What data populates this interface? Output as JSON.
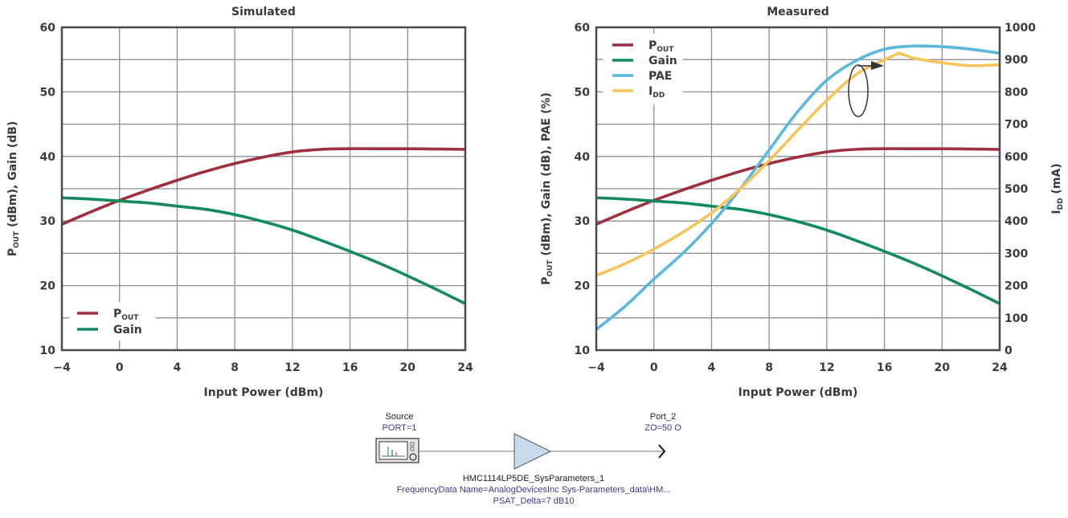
{
  "chart_data": [
    {
      "type": "line",
      "title": "Simulated",
      "xlabel": "Input Power (dBm)",
      "ylabel": "P_OUT (dBm), Gain (dB)",
      "xlim": [
        -4,
        24
      ],
      "ylim": [
        10,
        60
      ],
      "xticks": [
        "−4",
        "0",
        "4",
        "8",
        "12",
        "16",
        "20",
        "24"
      ],
      "yticks": [
        "10",
        "20",
        "30",
        "40",
        "50",
        "60"
      ],
      "grid": true,
      "legend_position": "bottom-left",
      "series": [
        {
          "name": "P_OUT",
          "label_main": "P",
          "label_sub": "OUT",
          "color": "#9e2f3f",
          "axis": "left",
          "x": [
            -4,
            -2,
            0,
            2,
            4,
            6,
            8,
            10,
            12,
            14,
            16,
            18,
            20,
            22,
            24
          ],
          "y": [
            29.5,
            31.4,
            33.2,
            34.8,
            36.3,
            37.7,
            38.9,
            39.9,
            40.7,
            41.1,
            41.2,
            41.2,
            41.2,
            41.15,
            41.1
          ]
        },
        {
          "name": "Gain",
          "label_main": "Gain",
          "label_sub": "",
          "color": "#138a5e",
          "axis": "left",
          "x": [
            -4,
            -2,
            0,
            2,
            4,
            6,
            8,
            10,
            12,
            14,
            16,
            18,
            20,
            22,
            24
          ],
          "y": [
            33.6,
            33.4,
            33.1,
            32.8,
            32.3,
            31.8,
            31.0,
            29.9,
            28.6,
            27.0,
            25.3,
            23.5,
            21.5,
            19.4,
            17.2
          ]
        }
      ]
    },
    {
      "type": "line",
      "title": "Measured",
      "xlabel": "Input Power (dBm)",
      "ylabel": "P_OUT (dBm), Gain (dB), PAE (%)",
      "ylabel_right": "I_DD (mA)",
      "xlim": [
        -4,
        24
      ],
      "ylim": [
        10,
        60
      ],
      "ylim_right": [
        0,
        1000
      ],
      "xticks": [
        "−4",
        "0",
        "4",
        "8",
        "12",
        "16",
        "20",
        "24"
      ],
      "yticks": [
        "10",
        "20",
        "30",
        "40",
        "50",
        "60"
      ],
      "yticks_right": [
        "0",
        "100",
        "200",
        "300",
        "400",
        "500",
        "600",
        "700",
        "800",
        "900",
        "1000"
      ],
      "grid": true,
      "legend_position": "top-left",
      "annotation": "ellipse around PAE/I_DD curves with arrow pointing right (I_DD uses right axis)",
      "series": [
        {
          "name": "P_OUT",
          "label_main": "P",
          "label_sub": "OUT",
          "color": "#9e2f3f",
          "axis": "left",
          "x": [
            -4,
            -2,
            0,
            2,
            4,
            6,
            8,
            10,
            12,
            14,
            16,
            18,
            20,
            22,
            24
          ],
          "y": [
            29.5,
            31.4,
            33.2,
            34.8,
            36.3,
            37.7,
            38.9,
            39.9,
            40.7,
            41.1,
            41.2,
            41.2,
            41.2,
            41.15,
            41.1
          ]
        },
        {
          "name": "Gain",
          "label_main": "Gain",
          "label_sub": "",
          "color": "#138a5e",
          "axis": "left",
          "x": [
            -4,
            -2,
            0,
            2,
            4,
            6,
            8,
            10,
            12,
            14,
            16,
            18,
            20,
            22,
            24
          ],
          "y": [
            33.6,
            33.4,
            33.1,
            32.8,
            32.3,
            31.8,
            31.0,
            29.9,
            28.6,
            27.0,
            25.3,
            23.5,
            21.5,
            19.4,
            17.2
          ]
        },
        {
          "name": "PAE",
          "label_main": "PAE",
          "label_sub": "",
          "color": "#5bb7dc",
          "axis": "left",
          "x": [
            -4,
            -2,
            0,
            2,
            4,
            6,
            8,
            10,
            12,
            14,
            16,
            18,
            20,
            22,
            24
          ],
          "y": [
            13.2,
            16.8,
            21.0,
            25.0,
            29.6,
            35.0,
            41.0,
            47.0,
            51.8,
            54.8,
            56.6,
            57.1,
            57.0,
            56.6,
            56.0
          ]
        },
        {
          "name": "I_DD",
          "label_main": "I",
          "label_sub": "DD",
          "color": "#f6c55a",
          "axis": "right",
          "x": [
            -4,
            -2,
            0,
            2,
            4,
            6,
            8,
            10,
            12,
            14,
            16,
            17,
            18,
            20,
            22,
            24
          ],
          "y": [
            231,
            268,
            313,
            365,
            425,
            500,
            587,
            682,
            774,
            853,
            900,
            920,
            905,
            890,
            881,
            884
          ]
        }
      ]
    }
  ],
  "schematic": {
    "source_label": "Source",
    "source_param": "PORT=1",
    "port2_label": "Port_2",
    "port2_param": "ZO=50 O",
    "amp_name": "HMC1114LP5DE_SysParameters_1",
    "amp_param1": "FrequencyData Name=AnalogDevicesInc Sys-Parameters_data\\HM...",
    "amp_param2": "PSAT_Delta=7 dB10",
    "icons": [
      "signal-source-icon",
      "amplifier-icon",
      "port-arrow-icon"
    ]
  }
}
